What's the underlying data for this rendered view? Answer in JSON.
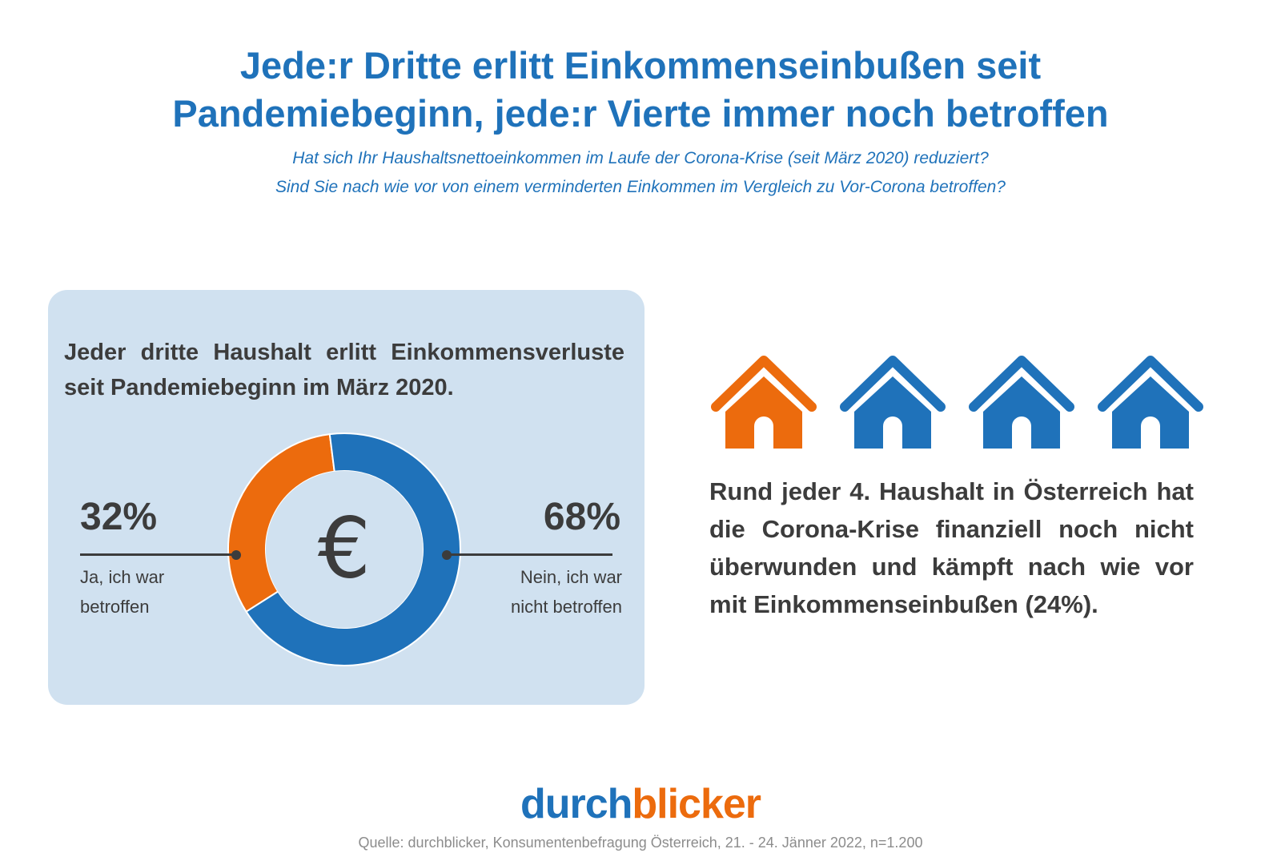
{
  "header": {
    "title_line1": "Jede:r Dritte erlitt Einkommenseinbußen seit",
    "title_line2": "Pandemiebeginn, jede:r Vierte immer noch betroffen",
    "question_1": "Hat sich Ihr Haushaltsnettoeinkommen im Laufe der Corona-Krise (seit März 2020) reduziert?",
    "question_2": "Sind Sie nach wie vor von einem verminderten Einkommen im Vergleich zu Vor-Corona betroffen?"
  },
  "chart_data": {
    "type": "pie",
    "variant": "donut",
    "title": "Jeder dritte Haushalt erlitt Einkommensverluste seit Pandemiebeginn im März 2020.",
    "center_symbol": "€",
    "slices": [
      {
        "label_line1": "Ja, ich war",
        "label_line2": "betroffen",
        "value": 32,
        "display": "32%",
        "color": "#ec6b0d"
      },
      {
        "label_line1": "Nein, ich war",
        "label_line2": "nicht betroffen",
        "value": 68,
        "display": "68%",
        "color": "#1f72ba"
      }
    ]
  },
  "panel_heading": {
    "line1": "Jeder dritte Haushalt erlitt Einkommensverluste",
    "line2": "seit Pandemiebeginn im März 2020."
  },
  "houses": {
    "total": 4,
    "highlighted": 1,
    "highlight_color": "#ec6b0d",
    "default_color": "#1f72ba",
    "icon": "house-icon"
  },
  "right_text": "Rund jeder 4. Haushalt in Österreich hat die Corona-Krise finanziell noch nicht überwunden und kämpft nach wie vor mit Einkommenseinbußen (24%).",
  "logo": {
    "part1": "durch",
    "part2": "blicker",
    "color1": "#1f72ba",
    "color2": "#ec6b0d"
  },
  "source": "Quelle: durchblicker, Konsumentenbefragung Österreich, 21. - 24. Jänner 2022, n=1.200",
  "colors": {
    "accent_blue": "#1f72ba",
    "accent_orange": "#ec6b0d",
    "panel_bg": "#d0e1f0",
    "text_dark": "#3c3c3c",
    "text_muted": "#8c8c8c"
  }
}
